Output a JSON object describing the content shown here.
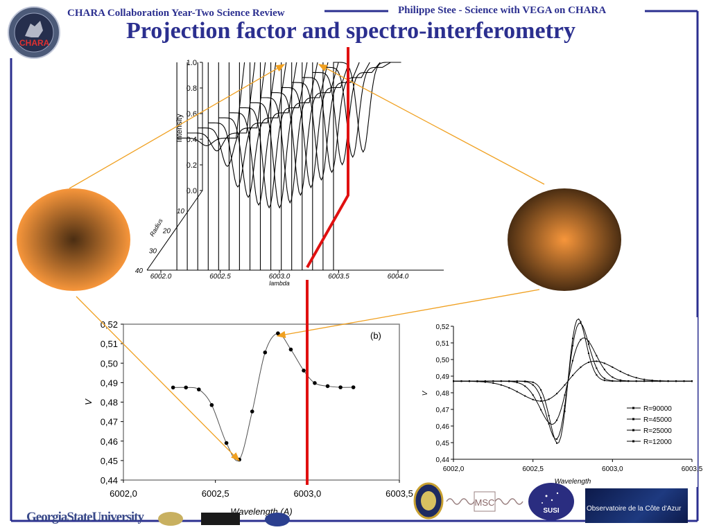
{
  "header": {
    "left_text": "CHARA Collaboration Year-Two Science Review",
    "right_text": "Philippe Stee - Science with VEGA on CHARA",
    "logo_text": "CHARA",
    "brand_color": "#2b2f8f"
  },
  "slide": {
    "title": "Projection factor and spectro-interferometry"
  },
  "figures": {
    "left_star": {
      "color_edge": "#f7963b",
      "color_center": "#4a2d12"
    },
    "right_star": {
      "color_edge": "#4a2d12",
      "color_center": "#f7963b"
    },
    "arrow_color": "#f0a020",
    "marker_color": "#e01010"
  },
  "chart_data": [
    {
      "type": "line",
      "title": "",
      "xlabel": "lambda",
      "ylabel": "Intensity",
      "depth_label": "Radius",
      "x_ticks": [
        "6002.0",
        "6002.5",
        "6003.0",
        "6003.5",
        "6004.0"
      ],
      "y_ticks": [
        "1.0",
        "0.8",
        "0.6",
        "0.4",
        "0.2",
        "0.0"
      ],
      "depth_ticks": [
        "10",
        "20",
        "30",
        "40"
      ],
      "xlim": [
        6002.0,
        6004.0
      ],
      "ylim": [
        0.0,
        1.0
      ],
      "profile_centers": [
        6002.42,
        6002.48,
        6002.54,
        6002.6,
        6002.66,
        6002.72,
        6002.78,
        6002.84,
        6002.9,
        6002.96,
        6003.02,
        6003.08,
        6003.14,
        6003.2,
        6003.26,
        6003.32
      ],
      "profile_depths": [
        0.06,
        0.14,
        0.3,
        0.5,
        0.62,
        0.72,
        0.78,
        0.82,
        0.82,
        0.8,
        0.78,
        0.76,
        0.74,
        0.72,
        0.7,
        0.7
      ]
    },
    {
      "type": "line",
      "panel_label": "(b)",
      "xlabel": "Wavelength (A)",
      "ylabel": "V",
      "x_ticks": [
        "6002,0",
        "6002,5",
        "6003,0",
        "6003,5"
      ],
      "y_ticks": [
        "0,52",
        "0,51",
        "0,50",
        "0,49",
        "0,48",
        "0,47",
        "0,46",
        "0,45",
        "0,44"
      ],
      "xlim": [
        6002.0,
        6003.5
      ],
      "ylim": [
        0.44,
        0.52
      ],
      "grid": false,
      "x": [
        6002.27,
        6002.34,
        6002.41,
        6002.48,
        6002.56,
        6002.63,
        6002.7,
        6002.77,
        6002.84,
        6002.91,
        6002.98,
        6003.04,
        6003.11,
        6003.18,
        6003.25
      ],
      "y": [
        0.4875,
        0.4875,
        0.4865,
        0.4785,
        0.459,
        0.4505,
        0.4752,
        0.5055,
        0.5153,
        0.507,
        0.4962,
        0.4898,
        0.4882,
        0.4876,
        0.4876
      ]
    },
    {
      "type": "line",
      "xlabel": "Wavelength",
      "ylabel": "V",
      "x_ticks": [
        "6002,0",
        "6002,5",
        "6003,0",
        "6003,5"
      ],
      "y_ticks": [
        "0,52",
        "0,51",
        "0,50",
        "0,49",
        "0,48",
        "0,47",
        "0,46",
        "0,45",
        "0,44"
      ],
      "xlim": [
        6002.0,
        6003.5
      ],
      "ylim": [
        0.44,
        0.52
      ],
      "legend_position": "bottom-right",
      "series": [
        {
          "name": "R=90000",
          "amp": 0.0375,
          "sigma": 0.065
        },
        {
          "name": "R=45000",
          "amp": 0.035,
          "sigma": 0.075
        },
        {
          "name": "R=25000",
          "amp": 0.026,
          "sigma": 0.1
        },
        {
          "name": "R=12000",
          "amp": 0.012,
          "sigma": 0.17
        }
      ]
    }
  ],
  "footer": {
    "gsu_text": "GeorgiaStateUniversity",
    "msc_text": "MSC",
    "susi_text": "SUSI",
    "oca_text": "Observatoire de la Côte d'Azur"
  }
}
